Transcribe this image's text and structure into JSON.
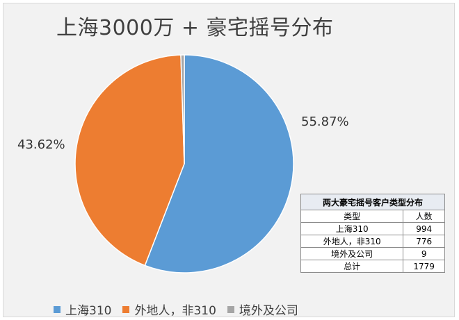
{
  "chart_data": {
    "type": "pie",
    "title": "上海3000万 + 豪宅摇号分布",
    "categories": [
      "上海310",
      "外地人，非310",
      "境外及公司"
    ],
    "values": [
      994,
      776,
      9
    ],
    "percent_labels": [
      "55.87%",
      "43.62%",
      ""
    ],
    "colors": [
      "#5b9bd5",
      "#ed7d31",
      "#a5a5a5"
    ],
    "legend_position": "bottom"
  },
  "table": {
    "title": "两大豪宅摇号客户类型分布",
    "headers": [
      "类型",
      "人数"
    ],
    "rows": [
      [
        "上海310",
        "994"
      ],
      [
        "外地人，非310",
        "776"
      ],
      [
        "境外及公司",
        "9"
      ],
      [
        "总计",
        "1779"
      ]
    ]
  }
}
